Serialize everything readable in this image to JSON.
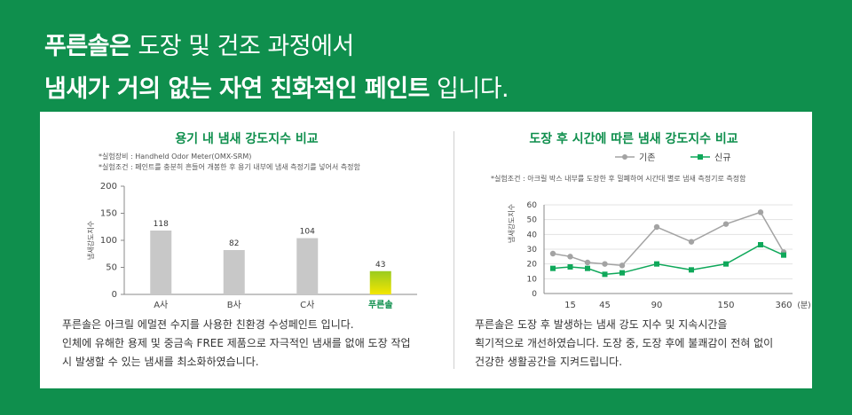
{
  "headline": {
    "line1_bold": "푸른솔은",
    "line1_rest": " 도장 및 건조 과정에서",
    "line2_a": "냄새가 거의 없는 ",
    "line2_b": "자연 친화적인 페인트",
    "line2_c": " 입니다."
  },
  "left": {
    "title": "용기 내 냄새 강도지수 비교",
    "note1": "*실험장비 : Handheld Odor Meter(OMX-SRM)",
    "note2": "*실험조건 : 페인트를 충분히 흔들어 개봉한 후 용기 내부에 냄새 측정기를 넣어서 측정함",
    "desc": [
      "푸른솔은 아크릴 에멀젼 수지를 사용한 친환경 수성페인트 입니다.",
      "인체에 유해한 용제 및 중금속 FREE 제품으로 자극적인 냄새를 없애 도장 작업",
      "시 발생할 수 있는 냄새를 최소화하였습니다."
    ]
  },
  "right": {
    "title": "도장 후 시간에 따른 냄새 강도지수 비교",
    "note": "*실험조건 : 아크릴 박스 내부를 도장한 후 밀폐하여 시간대 별로 냄새 측정기로 측정함",
    "desc": [
      "푸른솔은 도장 후 발생하는 냄새 강도 지수 및 지속시간을",
      "획기적으로 개선하였습니다. 도장 중, 도장 후에 불쾌감이 전혀 없이",
      "건강한 생활공간을 지켜드립니다."
    ]
  },
  "chart_data": [
    {
      "type": "bar",
      "categories": [
        "A사",
        "B사",
        "C사",
        "푸른솔"
      ],
      "values": [
        118,
        82,
        104,
        43
      ],
      "ylabel": "냄새강도지수",
      "ylim": [
        0,
        200
      ],
      "yticks": [
        0,
        50,
        100,
        150,
        200
      ],
      "colors": {
        "bar": "#c8c8c8",
        "highlight_top": "#9acb1f",
        "highlight_bottom": "#f4e600",
        "highlight_label": "#0f8f4d"
      }
    },
    {
      "type": "line",
      "x": [
        0,
        15,
        30,
        45,
        60,
        90,
        120,
        150,
        180,
        200
      ],
      "xtick_labels": [
        "15",
        "45",
        "90",
        "150",
        "360"
      ],
      "xunit": "(분)",
      "ylabel": "냄새강도지수",
      "ylim": [
        0,
        60
      ],
      "yticks": [
        0,
        10,
        20,
        30,
        40,
        50,
        60
      ],
      "legend_position": "top",
      "series": [
        {
          "name": "기존",
          "color": "#a3a3a3",
          "marker": "circle",
          "values": [
            27,
            25,
            21,
            20,
            19,
            45,
            35,
            47,
            55,
            28
          ]
        },
        {
          "name": "신규",
          "color": "#0fa85a",
          "marker": "square",
          "values": [
            17,
            18,
            17,
            13,
            14,
            20,
            16,
            20,
            33,
            26
          ]
        }
      ]
    }
  ]
}
